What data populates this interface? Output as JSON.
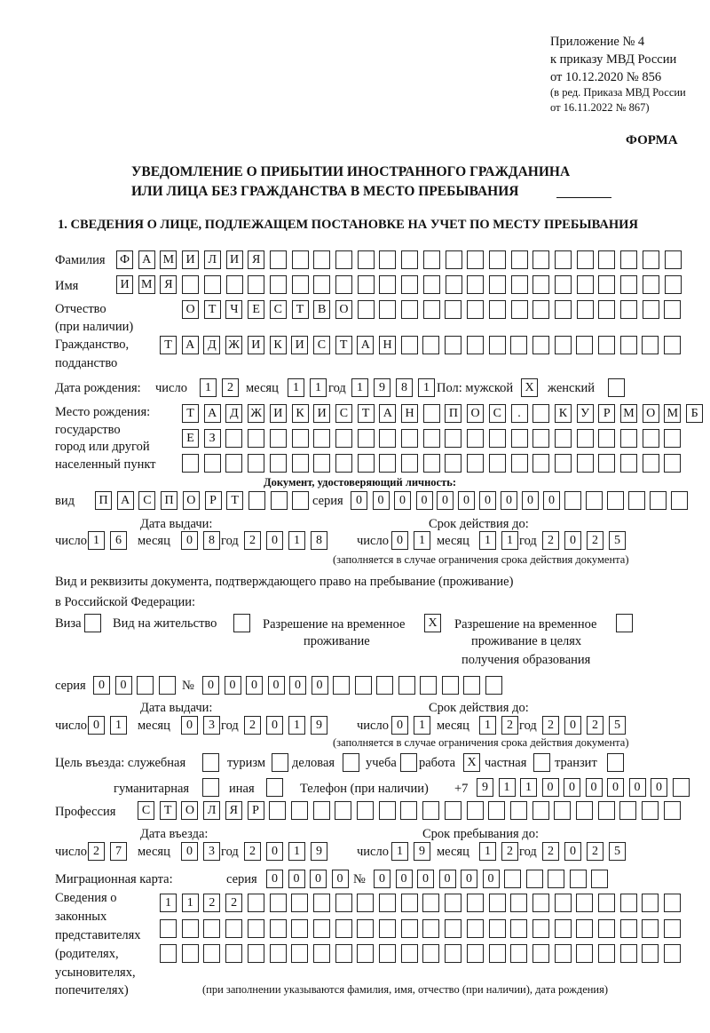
{
  "header": {
    "appendix": [
      "Приложение № 4",
      "к приказу МВД России",
      "от 10.12.2020 № 856"
    ],
    "edition": [
      "(в ред. Приказа МВД России",
      "от 16.11.2022 № 867)"
    ],
    "forma": "ФОРМА",
    "title_line1": "УВЕДОМЛЕНИЕ О ПРИБЫТИИ ИНОСТРАННОГО ГРАЖДАНИНА",
    "title_line2": "ИЛИ ЛИЦА БЕЗ ГРАЖДАНСТВА В МЕСТО ПРЕБЫВАНИЯ",
    "section1": "1. СВЕДЕНИЯ О ЛИЦЕ, ПОДЛЕЖАЩЕМ ПОСТАНОВКЕ НА УЧЕТ ПО МЕСТУ ПРЕБЫВАНИЯ"
  },
  "labels": {
    "surname": "Фамилия",
    "name": "Имя",
    "patronymic": "Отчество",
    "patronymic_note": "(при наличии)",
    "citizenship": "Гражданство,",
    "citizenship2": "подданство",
    "birth_date": "Дата рождения:",
    "day": "число",
    "month": "месяц",
    "year": "год",
    "sex": "Пол: мужской",
    "female": "женский",
    "birth_place": [
      "Место рождения:",
      "государство",
      "город или другой",
      "населенный пункт"
    ],
    "id_doc": "Документ, удостоверяющий личность:",
    "kind": "вид",
    "series": "серия",
    "number": "№",
    "issue_date": "Дата выдачи:",
    "valid_until": "Срок действия до:",
    "validity_note": "(заполняется в случае ограничения срока действия документа)",
    "right_doc1": "Вид и реквизиты документа, подтверждающего право на пребывание (проживание)",
    "right_doc2": "в Российской Федерации:",
    "visa": "Виза",
    "residence": "Вид на жительство",
    "temp_res": [
      "Разрешение на временное",
      "проживание"
    ],
    "temp_res_edu": [
      "Разрешение на временное",
      "проживание в целях",
      "получения образования"
    ],
    "purpose": "Цель въезда: служебная",
    "tourism": "туризм",
    "business": "деловая",
    "study": "учеба",
    "work": "работа",
    "private": "частная",
    "transit": "транзит",
    "humanitarian": "гуманитарная",
    "other": "иная",
    "phone": "Телефон (при наличии)",
    "phone_prefix": "+7",
    "profession": "Профессия",
    "entry_date": "Дата въезда:",
    "stay_until": "Срок пребывания до:",
    "migration_card": "Миграционная карта:",
    "representatives": [
      "Сведения о",
      "законных",
      "представителях",
      "(родителях,",
      "усыновителях,",
      "попечителях)"
    ],
    "rep_note": "(при заполнении указываются фамилия, имя, отчество (при наличии), дата рождения)"
  },
  "values": {
    "surname": [
      "Ф",
      "А",
      "М",
      "И",
      "Л",
      "И",
      "Я"
    ],
    "name": [
      "И",
      "М",
      "Я"
    ],
    "patronymic": [
      "О",
      "Т",
      "Ч",
      "Е",
      "С",
      "Т",
      "В",
      "О"
    ],
    "citizenship": [
      "Т",
      "А",
      "Д",
      "Ж",
      "И",
      "К",
      "И",
      "С",
      "Т",
      "А",
      "Н"
    ],
    "birth_day": [
      "1",
      "2"
    ],
    "birth_month": [
      "1",
      "1"
    ],
    "birth_year": [
      "1",
      "9",
      "8",
      "1"
    ],
    "sex_male": "X",
    "sex_female": "",
    "birth_place_1": [
      "Т",
      "А",
      "Д",
      "Ж",
      "И",
      "К",
      "И",
      "С",
      "Т",
      "А",
      "Н",
      "",
      "П",
      "О",
      "С",
      ".",
      "",
      "К",
      "У",
      "Р",
      "М",
      "О",
      "М",
      "Б"
    ],
    "birth_place_2": [
      "Е",
      "З"
    ],
    "birth_place_3": [],
    "id_kind": [
      "П",
      "А",
      "С",
      "П",
      "О",
      "Р",
      "Т"
    ],
    "id_series": [
      "0",
      "0",
      "0",
      "0"
    ],
    "id_number": [
      "0",
      "0",
      "0",
      "0",
      "0",
      "0"
    ],
    "id_issue": {
      "day": [
        "1",
        "6"
      ],
      "month": [
        "0",
        "8"
      ],
      "year": [
        "2",
        "0",
        "1",
        "8"
      ]
    },
    "id_valid": {
      "day": [
        "0",
        "1"
      ],
      "month": [
        "1",
        "1"
      ],
      "year": [
        "2",
        "0",
        "2",
        "5"
      ]
    },
    "right_doc_type": {
      "visa": "",
      "residence": "",
      "temp_res": "X",
      "temp_res_edu": ""
    },
    "right_series": [
      "0",
      "0"
    ],
    "right_number": [
      "0",
      "0",
      "0",
      "0",
      "0",
      "0"
    ],
    "right_issue": {
      "day": [
        "0",
        "1"
      ],
      "month": [
        "0",
        "3"
      ],
      "year": [
        "2",
        "0",
        "1",
        "9"
      ]
    },
    "right_valid": {
      "day": [
        "0",
        "1"
      ],
      "month": [
        "1",
        "2"
      ],
      "year": [
        "2",
        "0",
        "2",
        "5"
      ]
    },
    "purpose": {
      "official": "",
      "tourism": "",
      "business": "",
      "study": "",
      "work": "X",
      "private": "",
      "transit": "",
      "humanitarian": "",
      "other": ""
    },
    "phone": [
      "9",
      "1",
      "1",
      "0",
      "0",
      "0",
      "0",
      "0",
      "0"
    ],
    "profession": [
      "С",
      "Т",
      "О",
      "Л",
      "Я",
      "Р"
    ],
    "entry": {
      "day": [
        "2",
        "7"
      ],
      "month": [
        "0",
        "3"
      ],
      "year": [
        "2",
        "0",
        "1",
        "9"
      ]
    },
    "stay_until": {
      "day": [
        "1",
        "9"
      ],
      "month": [
        "1",
        "2"
      ],
      "year": [
        "2",
        "0",
        "2",
        "5"
      ]
    },
    "migration_series": [
      "0",
      "0",
      "0",
      "0"
    ],
    "migration_number": [
      "0",
      "0",
      "0",
      "0",
      "0",
      "0"
    ],
    "representatives_1": [
      "1",
      "1",
      "2",
      "2"
    ],
    "representatives_2": [],
    "representatives_3": []
  }
}
